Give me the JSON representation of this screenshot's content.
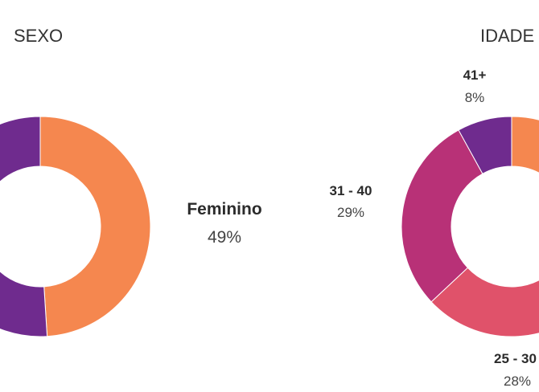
{
  "colors": {
    "orange": "#f5874f",
    "purple": "#6f2b8e",
    "magenta": "#b83177",
    "coral": "#e0526a"
  },
  "chart_data": [
    {
      "type": "pie",
      "title": "SEXO",
      "donut": true,
      "slices": [
        {
          "label": "Feminino",
          "value": 49,
          "value_label": "49%",
          "color": "#f5874f"
        },
        {
          "label": "",
          "value": 51,
          "value_label": "",
          "color": "#6f2b8e"
        }
      ]
    },
    {
      "type": "pie",
      "title": "IDADE",
      "donut": true,
      "slices": [
        {
          "label": "",
          "value": 35,
          "value_label": "",
          "color": "#f5874f"
        },
        {
          "label": "25 - 30",
          "value": 28,
          "value_label": "28%",
          "color": "#e0526a"
        },
        {
          "label": "31 - 40",
          "value": 29,
          "value_label": "29%",
          "color": "#b83177"
        },
        {
          "label": "41+",
          "value": 8,
          "value_label": "8%",
          "color": "#6f2b8e"
        }
      ]
    }
  ]
}
